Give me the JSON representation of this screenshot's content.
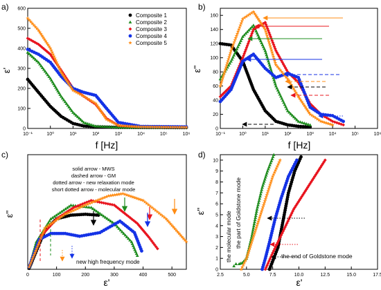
{
  "colors": {
    "composite_1": "#000000",
    "composite_2": "#1e8c1e",
    "composite_3": "#e8141e",
    "composite_4": "#1432e6",
    "composite_5": "#ff8c14",
    "note_green": "#1a7a1a"
  },
  "chart_data": [
    {
      "type": "scatter",
      "panel_label": "a)",
      "xlabel": "f [Hz]",
      "ylabel": "ε'",
      "xscale": "log",
      "xlim": [
        0.1,
        1000000
      ],
      "ylim": [
        0,
        600
      ],
      "x_tick_labels": [
        "10⁻¹",
        "10⁰",
        "10¹",
        "10²",
        "10³",
        "10⁴",
        "10⁵",
        "10⁶"
      ],
      "y_tick_labels": [
        "0",
        "100",
        "200",
        "300",
        "400",
        "500",
        "600"
      ],
      "legend_position": "top-right",
      "series": [
        {
          "name": "Composite 1",
          "marker": "circle",
          "x": [
            0.1,
            0.3,
            1,
            3,
            10,
            30,
            100,
            1000,
            1000000
          ],
          "y": [
            245,
            180,
            110,
            60,
            25,
            12,
            8,
            5,
            4
          ]
        },
        {
          "name": "Composite 2",
          "marker": "triangle",
          "x": [
            0.1,
            0.3,
            1,
            3,
            10,
            30,
            100,
            1000,
            1000000
          ],
          "y": [
            380,
            330,
            250,
            160,
            80,
            30,
            12,
            6,
            5
          ]
        },
        {
          "name": "Composite 3",
          "marker": "diamond",
          "x": [
            0.1,
            0.3,
            1,
            3,
            10,
            30,
            100,
            300,
            1000,
            10000,
            1000000
          ],
          "y": [
            450,
            420,
            370,
            290,
            200,
            160,
            120,
            50,
            15,
            8,
            6
          ]
        },
        {
          "name": "Composite 4",
          "marker": "circle",
          "x": [
            0.1,
            0.3,
            1,
            3,
            10,
            30,
            100,
            300,
            1000,
            10000,
            1000000
          ],
          "y": [
            395,
            370,
            330,
            260,
            200,
            180,
            165,
            100,
            30,
            10,
            8
          ]
        },
        {
          "name": "Composite 5",
          "marker": "star",
          "x": [
            0.1,
            0.3,
            1,
            3,
            10,
            30,
            100,
            300,
            1000,
            10000,
            1000000
          ],
          "y": [
            550,
            490,
            400,
            280,
            190,
            160,
            125,
            45,
            15,
            8,
            6
          ]
        }
      ]
    },
    {
      "type": "scatter",
      "panel_label": "b)",
      "xlabel": "f [Hz]",
      "ylabel": "ε''",
      "xscale": "log",
      "xlim": [
        0.1,
        1000000
      ],
      "ylim": [
        0,
        170
      ],
      "x_tick_labels": [
        "10⁻¹",
        "10⁰",
        "10¹",
        "10²",
        "10³",
        "10⁴",
        "10⁵",
        "10⁶"
      ],
      "y_tick_labels": [
        "0",
        "20",
        "40",
        "60",
        "80",
        "100",
        "120",
        "140",
        "160"
      ],
      "series": [
        {
          "name": "Composite 1",
          "marker": "circle",
          "x": [
            0.1,
            0.3,
            1,
            3,
            10,
            30,
            100,
            300,
            1000
          ],
          "y": [
            120,
            118,
            95,
            55,
            25,
            10,
            5,
            3,
            2
          ]
        },
        {
          "name": "Composite 2",
          "marker": "triangle",
          "x": [
            0.1,
            0.3,
            1,
            3,
            10,
            30,
            100,
            300,
            1000
          ],
          "y": [
            70,
            95,
            130,
            146,
            110,
            60,
            25,
            10,
            5
          ]
        },
        {
          "name": "Composite 3",
          "marker": "diamond",
          "x": [
            0.1,
            0.3,
            1,
            3,
            10,
            30,
            100,
            300,
            1000,
            3000,
            10000,
            30000
          ],
          "y": [
            45,
            60,
            100,
            140,
            150,
            110,
            80,
            65,
            35,
            20,
            10,
            5
          ]
        },
        {
          "name": "Composite 4",
          "marker": "circle",
          "x": [
            0.1,
            0.3,
            1,
            3,
            10,
            30,
            100,
            300,
            1000,
            3000,
            10000,
            30000
          ],
          "y": [
            38,
            55,
            95,
            105,
            85,
            72,
            78,
            72,
            30,
            20,
            18,
            10
          ]
        },
        {
          "name": "Composite 5",
          "marker": "star",
          "x": [
            0.1,
            0.3,
            1,
            3,
            10,
            30,
            100,
            300,
            1000,
            3000,
            10000
          ],
          "y": [
            60,
            110,
            155,
            165,
            140,
            90,
            70,
            45,
            20,
            10,
            5
          ]
        }
      ]
    },
    {
      "type": "scatter",
      "panel_label": "c)",
      "xlabel": "ε'",
      "ylabel": "ε''",
      "xlim": [
        0,
        550
      ],
      "ylim": [
        0,
        250
      ],
      "x_tick_labels": [
        "0",
        "100",
        "200",
        "300",
        "400",
        "500"
      ],
      "annotations": [
        "solid arrow - MWS",
        "dashed arrow - GM",
        "dotted arrow - new relaxation mode",
        "short dotted arrow - molecular mode",
        "new high frequency mode"
      ],
      "series": [
        {
          "name": "Composite 1",
          "marker": "circle",
          "x": [
            5,
            30,
            60,
            100,
            150,
            200,
            245
          ],
          "y": [
            2,
            40,
            85,
            110,
            118,
            120,
            118
          ]
        },
        {
          "name": "Composite 2",
          "marker": "triangle",
          "x": [
            5,
            30,
            80,
            150,
            220,
            300,
            360,
            380
          ],
          "y": [
            5,
            60,
            110,
            140,
            135,
            100,
            60,
            30
          ]
        },
        {
          "name": "Composite 3",
          "marker": "diamond",
          "x": [
            5,
            50,
            100,
            160,
            220,
            300,
            380,
            420,
            450
          ],
          "y": [
            5,
            75,
            110,
            135,
            150,
            140,
            100,
            70,
            45
          ]
        },
        {
          "name": "Composite 4",
          "marker": "circle",
          "x": [
            5,
            40,
            80,
            130,
            180,
            250,
            320,
            370,
            395
          ],
          "y": [
            5,
            65,
            78,
            78,
            72,
            80,
            105,
            80,
            40
          ]
        },
        {
          "name": "Composite 5",
          "marker": "star",
          "x": [
            5,
            60,
            130,
            200,
            280,
            330,
            400,
            480,
            550
          ],
          "y": [
            5,
            90,
            120,
            140,
            160,
            165,
            150,
            110,
            60
          ]
        }
      ]
    },
    {
      "type": "scatter",
      "panel_label": "d)",
      "xlabel": "ε'",
      "ylabel": "ε''",
      "xlim": [
        2.5,
        17.5
      ],
      "ylim": [
        0,
        10.5
      ],
      "x_tick_labels": [
        "2.5",
        "5.0",
        "7.5",
        "10.0",
        "12.5",
        "15.0",
        "17.5"
      ],
      "y_tick_labels": [
        "0",
        "1",
        "2",
        "3",
        "4",
        "5",
        "6",
        "7",
        "8",
        "9",
        "10"
      ],
      "annotations": [
        "the molecular mode",
        "the part of Goldstone mode",
        "the end of Goldstone mode"
      ],
      "series": [
        {
          "name": "Composite 1",
          "marker": "circle",
          "x": [
            7.2,
            7.4,
            7.6,
            8.0,
            8.3,
            8.6,
            9.0,
            9.6,
            10.2
          ],
          "y": [
            0,
            0.5,
            1.0,
            2.0,
            3.5,
            5.0,
            7.0,
            9.0,
            10.3
          ]
        },
        {
          "name": "Composite 2",
          "marker": "triangle",
          "x": [
            3.8,
            4.0,
            4.3,
            4.6,
            5.0,
            5.5,
            6.0,
            6.5,
            7.0,
            7.6
          ],
          "y": [
            0.3,
            0.5,
            0.5,
            0.6,
            1.0,
            3.0,
            5.5,
            7.5,
            9.0,
            10.5
          ]
        },
        {
          "name": "Composite 3",
          "marker": "diamond",
          "x": [
            6.8,
            7.5,
            8.5,
            9.5,
            10.5,
            11.5,
            12.5
          ],
          "y": [
            0,
            1.5,
            3.5,
            5.5,
            7.0,
            8.5,
            10.0
          ]
        },
        {
          "name": "Composite 4",
          "marker": "circle",
          "x": [
            6.5,
            6.8,
            7.2,
            7.7,
            8.3,
            9.0,
            9.8
          ],
          "y": [
            0,
            1.0,
            2.5,
            4.5,
            6.5,
            8.5,
            10.0
          ]
        },
        {
          "name": "Composite 5",
          "marker": "star",
          "x": [
            4.5,
            5.0,
            5.5,
            6.0,
            6.5,
            7.0,
            7.5,
            8.2
          ],
          "y": [
            0,
            1.0,
            2.5,
            4.0,
            5.5,
            7.0,
            8.5,
            10.0
          ]
        }
      ]
    }
  ]
}
